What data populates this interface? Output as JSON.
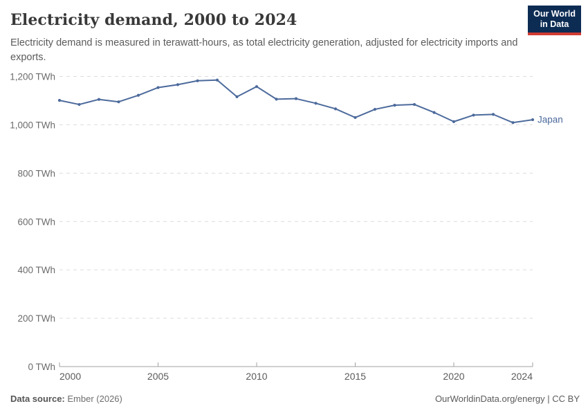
{
  "header": {
    "title": "Electricity demand, 2000 to 2024",
    "subtitle": "Electricity demand is measured in terawatt-hours, as total electricity generation, adjusted for electricity imports and exports.",
    "logo_line1": "Our World",
    "logo_line2": "in Data"
  },
  "footer": {
    "source_label": "Data source:",
    "source_value": "Ember (2026)",
    "rights": "OurWorldinData.org/energy | CC BY"
  },
  "colors": {
    "accent_line": "#4c6a9c",
    "logo_bg": "#0d2c54",
    "logo_red": "#d13b33",
    "grid": "#dcdcdc",
    "axis": "#a1a1a1",
    "x_tick_text": "#5b5b5b",
    "y_tick_text": "#6b6b6b",
    "title_text": "#383838",
    "subtitle_text": "#5b5b5b"
  },
  "chart_data": {
    "type": "line",
    "title": "Electricity demand, 2000 to 2024",
    "unit": "TWh",
    "xlabel": "",
    "ylabel": "",
    "xlim": [
      2000,
      2024
    ],
    "ylim": [
      0,
      1200
    ],
    "x_ticks": [
      2000,
      2005,
      2010,
      2015,
      2020,
      2024
    ],
    "y_ticks": [
      0,
      200,
      400,
      600,
      800,
      1000,
      1200
    ],
    "y_tick_suffix": " TWh",
    "grid": "dashed-horizontal",
    "legend": "inline-end-label",
    "series": [
      {
        "name": "Japan",
        "color": "#4c6a9c",
        "x": [
          2000,
          2001,
          2002,
          2003,
          2004,
          2005,
          2006,
          2007,
          2008,
          2009,
          2010,
          2011,
          2012,
          2013,
          2014,
          2015,
          2016,
          2017,
          2018,
          2019,
          2020,
          2021,
          2022,
          2023,
          2024
        ],
        "values": [
          1101,
          1084,
          1105,
          1095,
          1122,
          1154,
          1166,
          1182,
          1185,
          1116,
          1158,
          1106,
          1108,
          1089,
          1066,
          1030,
          1064,
          1081,
          1084,
          1051,
          1013,
          1040,
          1043,
          1009,
          1021
        ]
      }
    ]
  }
}
